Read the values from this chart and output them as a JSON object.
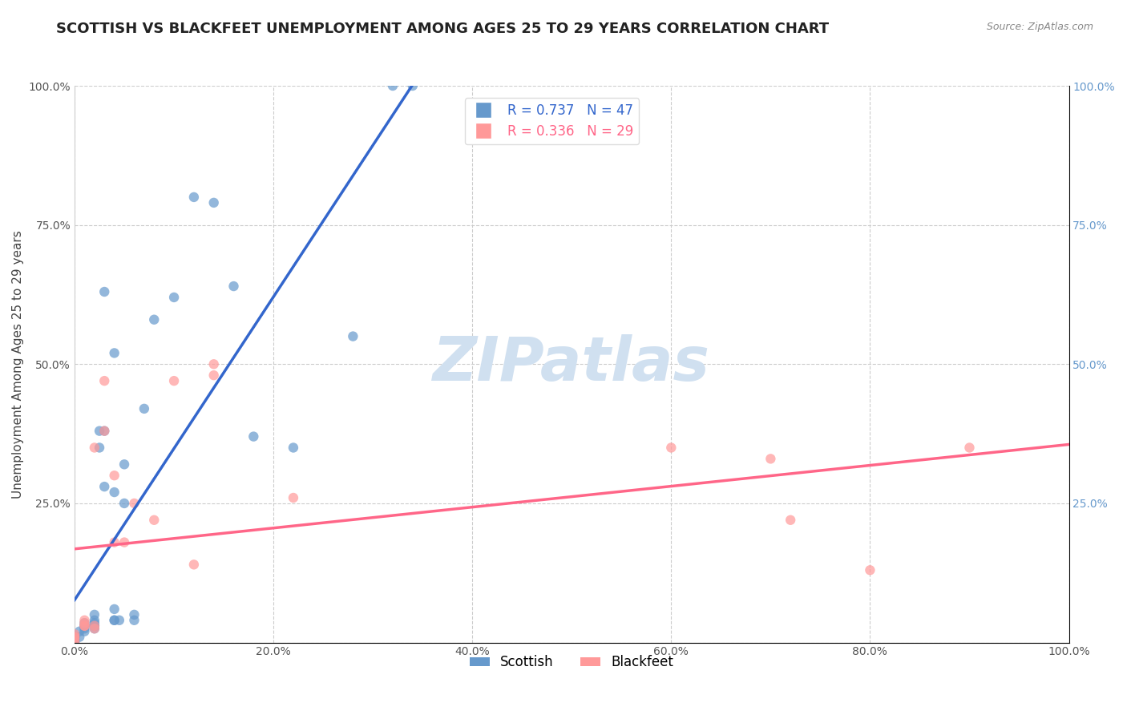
{
  "title": "SCOTTISH VS BLACKFEET UNEMPLOYMENT AMONG AGES 25 TO 29 YEARS CORRELATION CHART",
  "source": "Source: ZipAtlas.com",
  "xlabel": "",
  "ylabel": "Unemployment Among Ages 25 to 29 years",
  "xlim": [
    0,
    1.0
  ],
  "ylim": [
    0,
    1.0
  ],
  "xticks": [
    0.0,
    0.2,
    0.4,
    0.6,
    0.8,
    1.0
  ],
  "yticks": [
    0.0,
    0.25,
    0.5,
    0.75,
    1.0
  ],
  "xticklabels": [
    "0.0%",
    "20.0%",
    "40.0%",
    "60.0%",
    "80.0%",
    "100.0%"
  ],
  "yticklabels": [
    "",
    "25.0%",
    "50.0%",
    "75.0%",
    "100.0%"
  ],
  "background_color": "#ffffff",
  "watermark_text": "ZIPatlas",
  "scottish_color": "#6699cc",
  "blackfeet_color": "#ff9999",
  "scottish_R": 0.737,
  "scottish_N": 47,
  "blackfeet_R": 0.336,
  "blackfeet_N": 29,
  "scottish_x": [
    0.0,
    0.0,
    0.0,
    0.0,
    0.0,
    0.0,
    0.0,
    0.0,
    0.005,
    0.005,
    0.01,
    0.01,
    0.01,
    0.01,
    0.01,
    0.02,
    0.02,
    0.02,
    0.02,
    0.02,
    0.02,
    0.025,
    0.025,
    0.03,
    0.03,
    0.03,
    0.04,
    0.04,
    0.04,
    0.04,
    0.04,
    0.045,
    0.05,
    0.05,
    0.06,
    0.06,
    0.07,
    0.08,
    0.1,
    0.12,
    0.14,
    0.16,
    0.18,
    0.22,
    0.28,
    0.32,
    0.34
  ],
  "scottish_y": [
    0.0,
    0.0,
    0.005,
    0.005,
    0.01,
    0.01,
    0.01,
    0.01,
    0.01,
    0.02,
    0.02,
    0.025,
    0.03,
    0.03,
    0.035,
    0.025,
    0.03,
    0.03,
    0.035,
    0.04,
    0.05,
    0.35,
    0.38,
    0.28,
    0.38,
    0.63,
    0.04,
    0.04,
    0.06,
    0.27,
    0.52,
    0.04,
    0.25,
    0.32,
    0.04,
    0.05,
    0.42,
    0.58,
    0.62,
    0.8,
    0.79,
    0.64,
    0.37,
    0.35,
    0.55,
    1.0,
    1.0
  ],
  "blackfeet_x": [
    0.0,
    0.0,
    0.0,
    0.0,
    0.0,
    0.01,
    0.01,
    0.01,
    0.01,
    0.02,
    0.02,
    0.02,
    0.03,
    0.03,
    0.04,
    0.04,
    0.05,
    0.06,
    0.08,
    0.1,
    0.12,
    0.14,
    0.14,
    0.22,
    0.6,
    0.7,
    0.72,
    0.8,
    0.9
  ],
  "blackfeet_y": [
    0.0,
    0.005,
    0.01,
    0.01,
    0.015,
    0.03,
    0.03,
    0.035,
    0.04,
    0.025,
    0.03,
    0.35,
    0.38,
    0.47,
    0.18,
    0.3,
    0.18,
    0.25,
    0.22,
    0.47,
    0.14,
    0.48,
    0.5,
    0.26,
    0.35,
    0.33,
    0.22,
    0.13,
    0.35
  ],
  "scottish_line_color": "#3366cc",
  "blackfeet_line_color": "#ff6688",
  "grid_color": "#cccccc",
  "title_fontsize": 13,
  "axis_label_fontsize": 11,
  "tick_fontsize": 10,
  "legend_fontsize": 12,
  "watermark_color": "#d0e0f0",
  "watermark_fontsize": 55
}
